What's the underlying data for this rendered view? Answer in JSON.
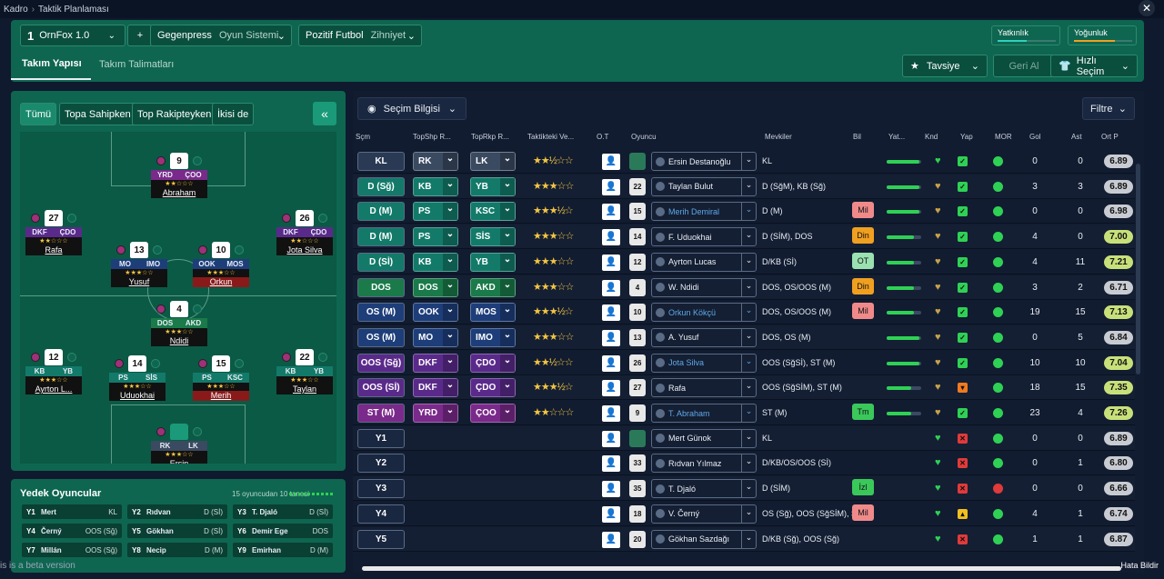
{
  "breadcrumb": {
    "root": "Kadro",
    "current": "Taktik Planlaması"
  },
  "header": {
    "tactic_slot": "1",
    "tactic_name": "OrnFox 1.0",
    "add": "+",
    "style1_label": "Gegenpress",
    "style1_value": "Oyun Sistemi",
    "style2_label": "Pozitif Futbol",
    "style2_value": "Zihniyet",
    "meter1": "Yatkınlık",
    "meter2": "Yoğunluk",
    "tab1": "Takım Yapısı",
    "tab2": "Takım Talimatları",
    "advice": "Tavsiye",
    "undo": "Geri Al",
    "quick": "Hızlı Seçim"
  },
  "left": {
    "filters": [
      "Tümü",
      "Topa Sahipken",
      "Top Rakipteyken",
      "İkisi de"
    ]
  },
  "pitch_players": [
    {
      "num": "9",
      "r1": "YRD",
      "r2": "ÇOO",
      "c1": "#7a2a8a",
      "c2": "#7a2a8a",
      "stars": "★★☆☆☆",
      "name": "Abraham",
      "red": false
    },
    {
      "num": "27",
      "r1": "DKF",
      "r2": "ÇDO",
      "c1": "#5a2a8a",
      "c2": "#5a2a8a",
      "stars": "★★☆☆☆",
      "name": "Rafa",
      "red": false
    },
    {
      "num": "26",
      "r1": "DKF",
      "r2": "ÇDO",
      "c1": "#5a2a8a",
      "c2": "#5a2a8a",
      "stars": "★★☆☆☆",
      "name": "Jota Silva",
      "red": false
    },
    {
      "num": "13",
      "r1": "MO",
      "r2": "IMO",
      "c1": "#1e3e7a",
      "c2": "#1e3e7a",
      "stars": "★★★☆☆",
      "name": "Yusuf",
      "red": false
    },
    {
      "num": "10",
      "r1": "OOK",
      "r2": "MOS",
      "c1": "#1e3e7a",
      "c2": "#1e3e7a",
      "stars": "★★★☆☆",
      "name": "Orkun",
      "red": true
    },
    {
      "num": "4",
      "r1": "DOS",
      "r2": "AKD",
      "c1": "#1a7a4a",
      "c2": "#1a7a4a",
      "stars": "★★★☆☆",
      "name": "Ndidi",
      "red": false
    },
    {
      "num": "12",
      "r1": "KB",
      "r2": "YB",
      "c1": "#137a6a",
      "c2": "#137a6a",
      "stars": "★★★☆☆",
      "name": "Ayrton L...",
      "red": false
    },
    {
      "num": "14",
      "r1": "PS",
      "r2": "SİS",
      "c1": "#137a6a",
      "c2": "#137a6a",
      "stars": "★★★☆☆",
      "name": "Uduokhai",
      "red": false
    },
    {
      "num": "15",
      "r1": "PS",
      "r2": "KSC",
      "c1": "#137a6a",
      "c2": "#137a6a",
      "stars": "★★★☆☆",
      "name": "Merih",
      "red": true
    },
    {
      "num": "22",
      "r1": "KB",
      "r2": "YB",
      "c1": "#137a6a",
      "c2": "#137a6a",
      "stars": "★★★☆☆",
      "name": "Taylan",
      "red": false
    },
    {
      "num": "",
      "r1": "RK",
      "r2": "LK",
      "c1": "#3a4a60",
      "c2": "#3a4a60",
      "stars": "★★★☆☆",
      "name": "Ersin",
      "red": false
    }
  ],
  "bench": {
    "title": "Yedek Oyuncular",
    "count": "15 oyuncudan 10 tanesi",
    "items": [
      {
        "slot": "Y1",
        "name": "Mert",
        "pos": "KL"
      },
      {
        "slot": "Y2",
        "name": "Rıdvan",
        "pos": "D (Sİ)"
      },
      {
        "slot": "Y3",
        "name": "T. Djaló",
        "pos": "D (Sİ)"
      },
      {
        "slot": "Y4",
        "name": "Černý",
        "pos": "OOS (Sğ)"
      },
      {
        "slot": "Y5",
        "name": "Gökhan",
        "pos": "D (Sİ)"
      },
      {
        "slot": "Y6",
        "name": "Demir Ege",
        "pos": "DOS"
      },
      {
        "slot": "Y7",
        "name": "Millán",
        "pos": "OOS (Sğ)"
      },
      {
        "slot": "Y8",
        "name": "Necip",
        "pos": "D (M)"
      },
      {
        "slot": "Y9",
        "name": "Emirhan",
        "pos": "D (M)"
      }
    ]
  },
  "table": {
    "selection_info": "Seçim Bilgisi",
    "filter": "Filtre",
    "headers": [
      "Sçm",
      "TopShp R...",
      "TopRkp R...",
      "Taktikteki Ve...",
      "O.T",
      "Oyuncu",
      "Mevkiler",
      "Bil",
      "Yat...",
      "Knd",
      "Yap",
      "MOR",
      "Gol",
      "Ast",
      "Ort P"
    ],
    "rows": [
      {
        "pos": "KL",
        "pc": "#2a3a55",
        "r1": "RK",
        "r1c": "#3a4a60",
        "r2": "LK",
        "r2c": "#3a4a60",
        "stars": "★★½☆☆",
        "kit": "",
        "gk": true,
        "name": "Ersin Destanoğlu",
        "link": false,
        "mevk": "KL",
        "bil": "",
        "bilc": "",
        "yat": 0.95,
        "heart": "g",
        "yap": "ok",
        "gol": "0",
        "ast": "0",
        "rating": "6.89",
        "rc": "#c8ccd2"
      },
      {
        "pos": "D (Sğ)",
        "pc": "#137a6a",
        "r1": "KB",
        "r1c": "#137a6a",
        "r2": "YB",
        "r2c": "#137a6a",
        "stars": "★★★☆☆",
        "kit": "22",
        "gk": false,
        "name": "Taylan Bulut",
        "link": false,
        "mevk": "D (SğM), KB (Sğ)",
        "bil": "",
        "bilc": "",
        "yat": 0.95,
        "heart": "y",
        "yap": "ok",
        "gol": "3",
        "ast": "3",
        "rating": "6.89",
        "rc": "#c8ccd2"
      },
      {
        "pos": "D (M)",
        "pc": "#137a6a",
        "r1": "PS",
        "r1c": "#137a6a",
        "r2": "KSC",
        "r2c": "#137a6a",
        "stars": "★★★½☆",
        "kit": "15",
        "gk": false,
        "name": "Merih Demiral",
        "link": true,
        "mevk": "D (M)",
        "bil": "Mil",
        "bilc": "#f08a8a",
        "yat": 0.95,
        "heart": "y",
        "yap": "ok",
        "gol": "0",
        "ast": "0",
        "rating": "6.98",
        "rc": "#c8ccd2"
      },
      {
        "pos": "D (M)",
        "pc": "#137a6a",
        "r1": "PS",
        "r1c": "#137a6a",
        "r2": "SİS",
        "r2c": "#137a6a",
        "stars": "★★★☆☆",
        "kit": "14",
        "gk": false,
        "name": "F. Uduokhai",
        "link": false,
        "mevk": "D (SİM), DOS",
        "bil": "Din",
        "bilc": "#f0a020",
        "yat": 0.8,
        "heart": "y",
        "yap": "ok",
        "gol": "4",
        "ast": "0",
        "rating": "7.00",
        "rc": "#c8e07a"
      },
      {
        "pos": "D (Sİ)",
        "pc": "#137a6a",
        "r1": "KB",
        "r1c": "#137a6a",
        "r2": "YB",
        "r2c": "#137a6a",
        "stars": "★★★☆☆",
        "kit": "12",
        "gk": false,
        "name": "Ayrton Lucas",
        "link": false,
        "mevk": "D/KB (Sİ)",
        "bil": "OT",
        "bilc": "#9ae0b0",
        "yat": 0.8,
        "heart": "y",
        "yap": "ok",
        "gol": "4",
        "ast": "11",
        "rating": "7.21",
        "rc": "#c8e07a"
      },
      {
        "pos": "DOS",
        "pc": "#1a7a4a",
        "r1": "DOS",
        "r1c": "#1a7a4a",
        "r2": "AKD",
        "r2c": "#1a7a4a",
        "stars": "★★★☆☆",
        "kit": "4",
        "gk": false,
        "name": "W. Ndidi",
        "link": false,
        "mevk": "DOS, OS/OOS (M)",
        "bil": "Din",
        "bilc": "#f0a020",
        "yat": 0.8,
        "heart": "o",
        "yap": "ok",
        "gol": "3",
        "ast": "2",
        "rating": "6.71",
        "rc": "#c8ccd2"
      },
      {
        "pos": "OS (M)",
        "pc": "#1e3e7a",
        "r1": "OOK",
        "r1c": "#1e3e7a",
        "r2": "MOS",
        "r2c": "#1e3e7a",
        "stars": "★★★½☆",
        "kit": "10",
        "gk": false,
        "name": "Orkun Kökçü",
        "link": true,
        "mevk": "DOS, OS/OOS (M)",
        "bil": "Mil",
        "bilc": "#f08a8a",
        "yat": 0.8,
        "heart": "y",
        "yap": "ok",
        "gol": "19",
        "ast": "15",
        "rating": "7.13",
        "rc": "#c8e07a"
      },
      {
        "pos": "OS (M)",
        "pc": "#1e3e7a",
        "r1": "MO",
        "r1c": "#1e3e7a",
        "r2": "IMO",
        "r2c": "#1e3e7a",
        "stars": "★★★☆☆",
        "kit": "13",
        "gk": false,
        "name": "A. Yusuf",
        "link": false,
        "mevk": "DOS, OS (M)",
        "bil": "",
        "bilc": "",
        "yat": 0.95,
        "heart": "y",
        "yap": "ok",
        "gol": "0",
        "ast": "5",
        "rating": "6.84",
        "rc": "#c8ccd2"
      },
      {
        "pos": "OOS (Sğ)",
        "pc": "#5a2a8a",
        "r1": "DKF",
        "r1c": "#5a2a8a",
        "r2": "ÇDO",
        "r2c": "#5a2a8a",
        "stars": "★★½☆☆",
        "kit": "26",
        "gk": false,
        "name": "Jota Silva",
        "link": true,
        "mevk": "OOS (SğSİ), ST (M)",
        "bil": "",
        "bilc": "",
        "yat": 0.95,
        "heart": "y",
        "yap": "ok",
        "gol": "10",
        "ast": "10",
        "rating": "7.04",
        "rc": "#c8e07a"
      },
      {
        "pos": "OOS (Sİ)",
        "pc": "#5a2a8a",
        "r1": "DKF",
        "r1c": "#5a2a8a",
        "r2": "ÇDO",
        "r2c": "#5a2a8a",
        "stars": "★★★½☆",
        "kit": "27",
        "gk": false,
        "name": "Rafa",
        "link": false,
        "mevk": "OOS (SğSİM), ST (M)",
        "bil": "",
        "bilc": "",
        "yat": 0.7,
        "heart": "y",
        "yap": "warn",
        "gol": "18",
        "ast": "15",
        "rating": "7.35",
        "rc": "#c8e07a"
      },
      {
        "pos": "ST (M)",
        "pc": "#7a2a8a",
        "r1": "YRD",
        "r1c": "#7a2a8a",
        "r2": "ÇOO",
        "r2c": "#7a2a8a",
        "stars": "★★☆☆☆",
        "kit": "9",
        "gk": false,
        "name": "T. Abraham",
        "link": true,
        "mevk": "ST (M)",
        "bil": "Tm",
        "bilc": "#3ac85a",
        "yat": 0.7,
        "heart": "y",
        "yap": "ok",
        "gol": "23",
        "ast": "4",
        "rating": "7.26",
        "rc": "#c8e07a"
      },
      {
        "pos": "Y1",
        "pc": "#1a2740",
        "kit": "",
        "gk": true,
        "name": "Mert Günok",
        "link": false,
        "mevk": "KL",
        "bil": "",
        "bilc": "",
        "yat": 0,
        "heart": "g",
        "yap": "x",
        "gol": "0",
        "ast": "0",
        "rating": "6.89",
        "rc": "#c8ccd2"
      },
      {
        "pos": "Y2",
        "pc": "#1a2740",
        "kit": "33",
        "gk": false,
        "name": "Rıdvan Yılmaz",
        "link": false,
        "mevk": "D/KB/OS/OOS (Sİ)",
        "bil": "",
        "bilc": "",
        "yat": 0,
        "heart": "g",
        "yap": "x",
        "gol": "0",
        "ast": "1",
        "rating": "6.80",
        "rc": "#c8ccd2"
      },
      {
        "pos": "Y3",
        "pc": "#1a2740",
        "kit": "35",
        "gk": false,
        "name": "T. Djaló",
        "link": false,
        "mevk": "D (SİM)",
        "bil": "İzl",
        "bilc": "#3ac85a",
        "yat": 0,
        "heart": "g",
        "yap": "x",
        "gol": "0",
        "ast": "0",
        "rating": "6.66",
        "rc": "#c8ccd2"
      },
      {
        "pos": "Y4",
        "pc": "#1a2740",
        "kit": "18",
        "gk": false,
        "name": "V. Černý",
        "link": false,
        "mevk": "OS (Sğ), OOS (SğSİM), S...",
        "bil": "Mil",
        "bilc": "#f08a8a",
        "yat": 0,
        "heart": "g",
        "yap": "up",
        "gol": "4",
        "ast": "1",
        "rating": "6.74",
        "rc": "#c8ccd2"
      },
      {
        "pos": "Y5",
        "pc": "#1a2740",
        "kit": "20",
        "gk": false,
        "name": "Gökhan Sazdağı",
        "link": false,
        "mevk": "D/KB (Sğ), OOS (Sğ)",
        "bil": "",
        "bilc": "",
        "yat": 0,
        "heart": "g",
        "yap": "x",
        "gol": "1",
        "ast": "1",
        "rating": "6.87",
        "rc": "#c8ccd2"
      }
    ]
  },
  "footer": {
    "beta": "is is a beta version",
    "report": "Hata Bildir"
  }
}
